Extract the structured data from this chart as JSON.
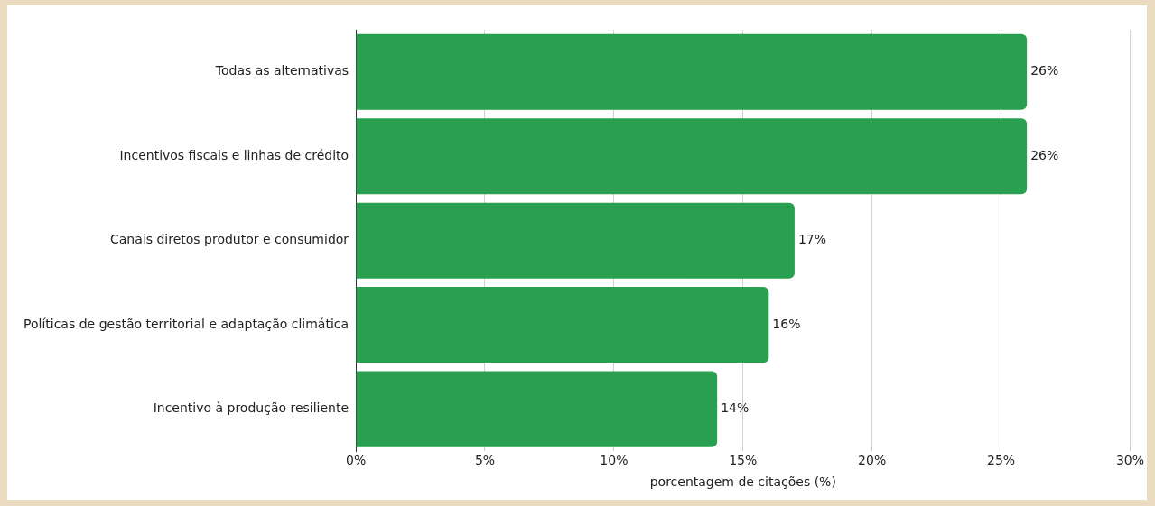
{
  "chart_data": {
    "type": "bar",
    "orientation": "horizontal",
    "xlabel": "porcentagem de citações (%)",
    "categories": [
      "Todas as alternativas",
      "Incentivos fiscais e linhas de crédito",
      "Canais diretos produtor e consumidor",
      "Políticas de gestão territorial e adaptação climática",
      "Incentivo à produção resiliente"
    ],
    "values": [
      26,
      26,
      17,
      16,
      14
    ],
    "value_labels": [
      "26%",
      "26%",
      "17%",
      "16%",
      "14%"
    ],
    "color": "#28a050",
    "xlim": [
      0,
      30
    ],
    "xticks": [
      {
        "value": 0,
        "label": "0%"
      },
      {
        "value": 5,
        "label": "5%"
      },
      {
        "value": 10,
        "label": "10%"
      },
      {
        "value": 15,
        "label": "15%"
      },
      {
        "value": 20,
        "label": "20%"
      },
      {
        "value": 25,
        "label": "25%"
      },
      {
        "value": 30,
        "label": "30%"
      }
    ],
    "grid": "x",
    "legend": false
  }
}
